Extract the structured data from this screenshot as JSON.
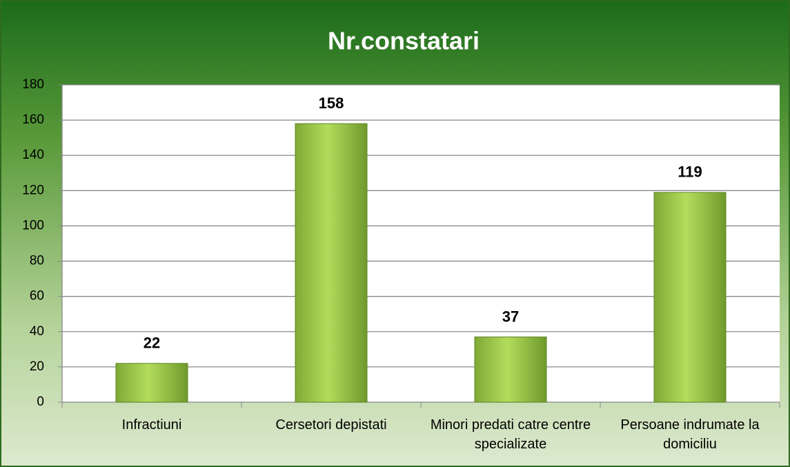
{
  "chart_data": {
    "type": "bar",
    "title": "Nr.constatari",
    "categories": [
      "Infractiuni",
      "Cersetori depistati",
      "Minori predati catre centre specializate",
      "Persoane indrumate la domiciliu"
    ],
    "values": [
      22,
      158,
      37,
      119
    ],
    "color": "#9ccb4a",
    "ylim": [
      0,
      180
    ],
    "yticks": [
      0,
      20,
      40,
      60,
      80,
      100,
      120,
      140,
      160,
      180
    ],
    "grid": true
  }
}
